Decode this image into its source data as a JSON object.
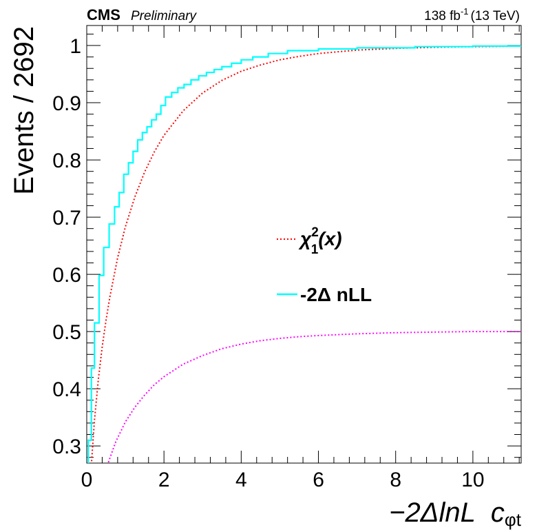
{
  "header": {
    "experiment": "CMS",
    "status": "Preliminary",
    "lumi_value": "138 fb",
    "lumi_exp": "-1",
    "energy": "(13 TeV)"
  },
  "chart_data": {
    "type": "line",
    "ylabel": "Events / 2692",
    "xlabel": "−2ΔlnL",
    "xlabel_suffix": "c",
    "xlabel_subscript": "φt",
    "xlim": [
      0,
      11.25
    ],
    "ylim": [
      0.27,
      1.035
    ],
    "x_ticks": [
      0,
      2,
      4,
      6,
      8,
      10
    ],
    "y_ticks": [
      0.3,
      0.4,
      0.5,
      0.6,
      0.7,
      0.8,
      0.9,
      1.0
    ],
    "x_tick_labels": [
      "0",
      "2",
      "4",
      "6",
      "8",
      "10"
    ],
    "y_tick_labels": [
      "0.3",
      "0.4",
      "0.5",
      "0.6",
      "0.7",
      "0.8",
      "0.9",
      "1"
    ],
    "legend_placement": "center",
    "series": [
      {
        "name": "χ²₁(x)",
        "legend_main": "χ",
        "legend_sup": "2",
        "legend_sub": "1",
        "legend_arg": "(x)",
        "style": "dotted",
        "color": "#ff0000",
        "x": [
          0.05,
          0.1,
          0.2,
          0.3,
          0.4,
          0.5,
          0.6,
          0.8,
          1.0,
          1.25,
          1.5,
          1.75,
          2.0,
          2.5,
          3.0,
          3.5,
          4.0,
          4.5,
          5.0,
          5.5,
          6.0,
          6.5,
          7.0,
          8.0,
          9.0,
          10.0,
          11.25
        ],
        "values": [
          0.177,
          0.248,
          0.345,
          0.416,
          0.473,
          0.52,
          0.561,
          0.629,
          0.683,
          0.736,
          0.779,
          0.814,
          0.843,
          0.886,
          0.917,
          0.939,
          0.955,
          0.966,
          0.975,
          0.981,
          0.986,
          0.989,
          0.992,
          0.995,
          0.997,
          0.998,
          0.999
        ]
      },
      {
        "name": "-2Δ nLL",
        "style": "step",
        "color": "#00ffff",
        "x": [
          0.04,
          0.12,
          0.2,
          0.32,
          0.44,
          0.58,
          0.72,
          0.84,
          0.96,
          1.08,
          1.2,
          1.32,
          1.44,
          1.56,
          1.68,
          1.8,
          1.92,
          2.04,
          2.2,
          2.36,
          2.52,
          2.7,
          2.9,
          3.1,
          3.3,
          3.5,
          3.75,
          4.0,
          4.3,
          4.7,
          5.2,
          6.0,
          7.0,
          8.5,
          10.0,
          11.25
        ],
        "values": [
          0.31,
          0.436,
          0.515,
          0.598,
          0.647,
          0.688,
          0.718,
          0.743,
          0.775,
          0.795,
          0.815,
          0.835,
          0.848,
          0.858,
          0.87,
          0.88,
          0.895,
          0.91,
          0.918,
          0.926,
          0.932,
          0.94,
          0.947,
          0.953,
          0.958,
          0.963,
          0.969,
          0.975,
          0.98,
          0.986,
          0.991,
          0.994,
          0.996,
          0.998,
          0.999,
          1.0
        ]
      },
      {
        "name": "",
        "style": "dotted",
        "color": "#ff00ff",
        "x": [
          0.5,
          0.75,
          1.0,
          1.25,
          1.5,
          1.75,
          2.0,
          2.5,
          3.0,
          3.5,
          4.0,
          4.5,
          5.0,
          5.5,
          6.0,
          7.0,
          8.0,
          9.0,
          10.0,
          11.25
        ],
        "values": [
          0.26,
          0.307,
          0.342,
          0.368,
          0.389,
          0.407,
          0.421,
          0.443,
          0.458,
          0.47,
          0.478,
          0.484,
          0.488,
          0.491,
          0.493,
          0.496,
          0.498,
          0.499,
          0.5,
          0.5
        ]
      }
    ]
  }
}
